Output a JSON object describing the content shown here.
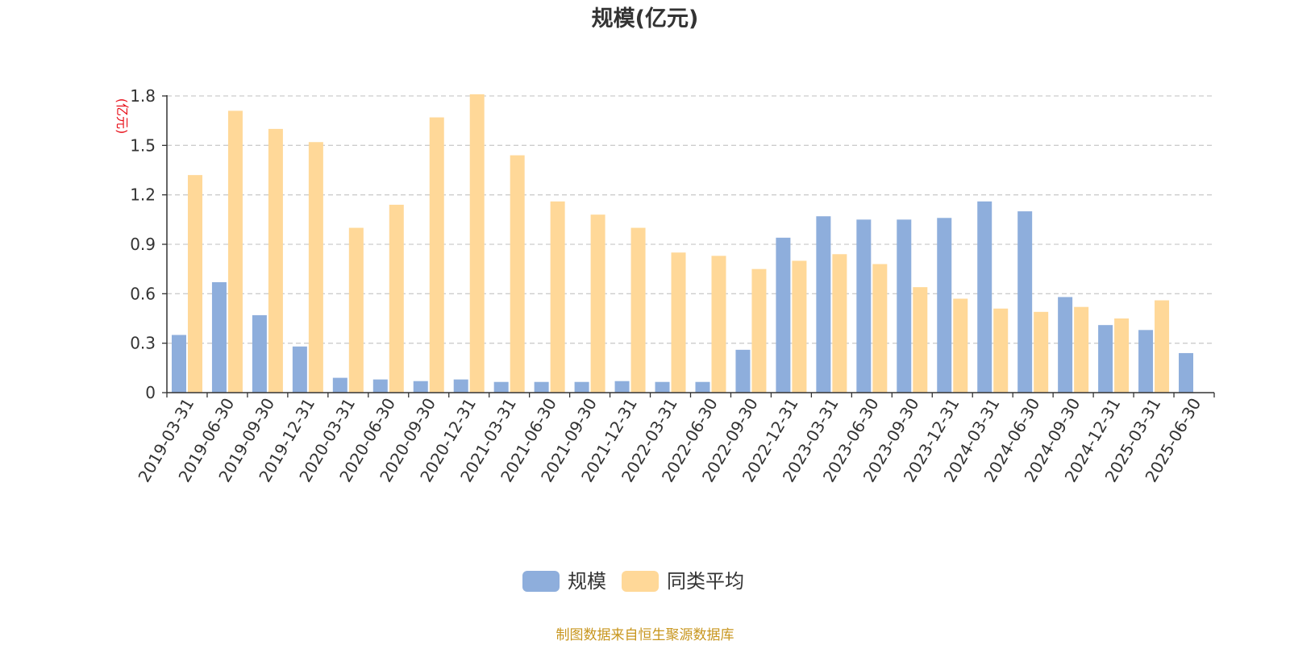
{
  "chart_data": {
    "type": "bar",
    "title": "规模(亿元)",
    "unit_label": "(亿元)",
    "ylim": [
      0,
      1.8
    ],
    "yticks": [
      "0",
      "0.3",
      "0.6",
      "0.9",
      "1.2",
      "1.5",
      "1.8"
    ],
    "grid": true,
    "legend_position": "bottom",
    "categories": [
      "2019-03-31",
      "2019-06-30",
      "2019-09-30",
      "2019-12-31",
      "2020-03-31",
      "2020-06-30",
      "2020-09-30",
      "2020-12-31",
      "2021-03-31",
      "2021-06-30",
      "2021-09-30",
      "2021-12-31",
      "2022-03-31",
      "2022-06-30",
      "2022-09-30",
      "2022-12-31",
      "2023-03-31",
      "2023-06-30",
      "2023-09-30",
      "2023-12-31",
      "2024-03-31",
      "2024-06-30",
      "2024-09-30",
      "2024-12-31",
      "2025-03-31",
      "2025-06-30"
    ],
    "series": [
      {
        "name": "规模",
        "color": "#8eaedc",
        "values": [
          0.35,
          0.67,
          0.47,
          0.28,
          0.09,
          0.08,
          0.07,
          0.08,
          0.065,
          0.065,
          0.065,
          0.07,
          0.065,
          0.065,
          0.26,
          0.94,
          1.07,
          1.05,
          1.05,
          1.06,
          1.16,
          1.1,
          0.58,
          0.41,
          0.38,
          0.24
        ]
      },
      {
        "name": "同类平均",
        "color": "#ffd898",
        "values": [
          1.32,
          1.71,
          1.6,
          1.52,
          1.0,
          1.14,
          1.67,
          1.81,
          1.44,
          1.16,
          1.08,
          1.0,
          0.85,
          0.83,
          0.75,
          0.8,
          0.84,
          0.78,
          0.64,
          0.57,
          0.51,
          0.49,
          0.52,
          0.45,
          0.56,
          null
        ]
      }
    ]
  },
  "source_text": "制图数据来自恒生聚源数据库"
}
